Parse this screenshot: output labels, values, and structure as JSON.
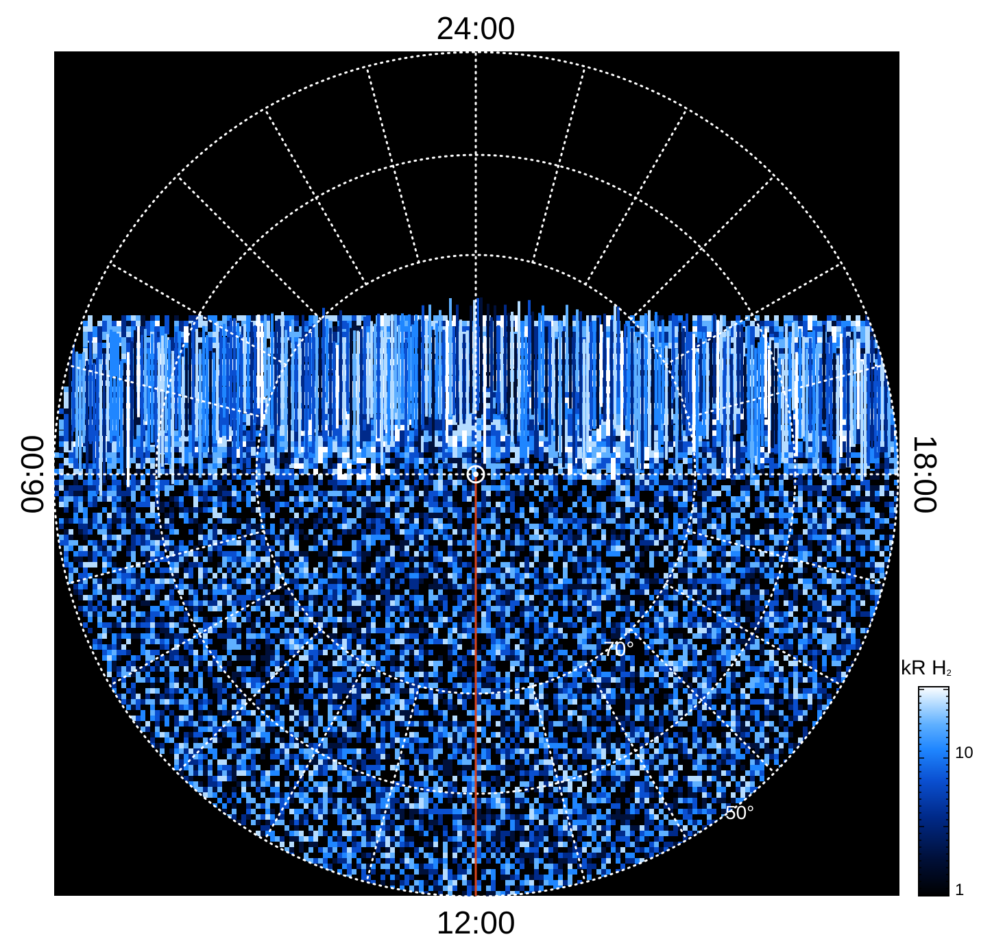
{
  "labels": {
    "top": "24:00",
    "bottom": "12:00",
    "left": "06:00",
    "right": "18:00"
  },
  "annotations": {
    "lat_inner": "70°",
    "lat_outer": "50°"
  },
  "colorbar": {
    "title": "kR H",
    "title_sub": "2",
    "ticks": [
      "10",
      "1"
    ],
    "scale": "log"
  },
  "colors": {
    "background": "#000000",
    "grid": "#ffffff",
    "meridian": "#d9451c",
    "colormap": [
      "#000000",
      "#00103a",
      "#002a8a",
      "#0a4fd0",
      "#1f86ff",
      "#5fb0ff",
      "#b5dcff",
      "#ffffff"
    ]
  }
}
